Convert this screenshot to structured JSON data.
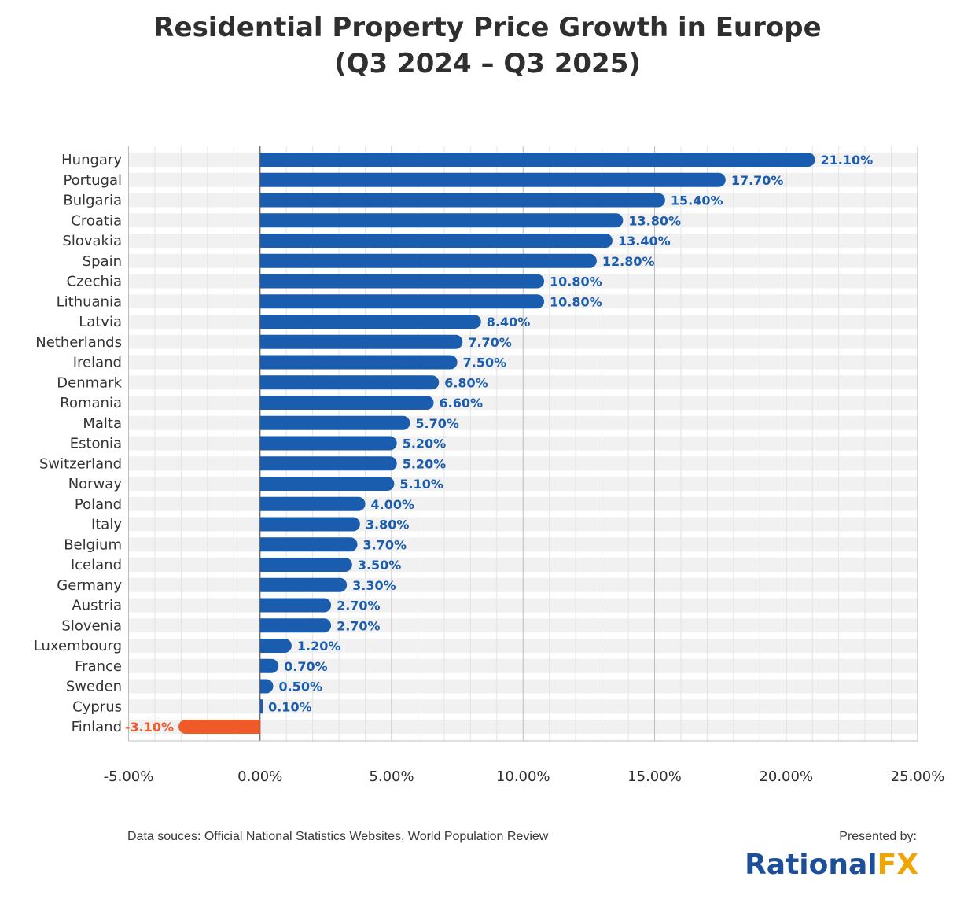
{
  "title_line1": "Residential Property Price Growth in Europe",
  "title_line2": "(Q3 2024 – Q3 2025)",
  "footer": {
    "source": "Data souces: Official National Statistics Websites, World Population Review",
    "presented_by": "Presented by:",
    "brand_part1": "Rational",
    "brand_part2": "FX"
  },
  "colors": {
    "positive": "#1a5cad",
    "negative": "#f05a28",
    "stripe": "#f1f1f1"
  },
  "chart_data": {
    "type": "bar",
    "orientation": "horizontal",
    "categories": [
      "Hungary",
      "Portugal",
      "Bulgaria",
      "Croatia",
      "Slovakia",
      "Spain",
      "Czechia",
      "Lithuania",
      "Latvia",
      "Netherlands",
      "Ireland",
      "Denmark",
      "Romania",
      "Malta",
      "Estonia",
      "Switzerland",
      "Norway",
      "Poland",
      "Italy",
      "Belgium",
      "Iceland",
      "Germany",
      "Austria",
      "Slovenia",
      "Luxembourg",
      "France",
      "Sweden",
      "Cyprus",
      "Finland"
    ],
    "values": [
      21.1,
      17.7,
      15.4,
      13.8,
      13.4,
      12.8,
      10.8,
      10.8,
      8.4,
      7.7,
      7.5,
      6.8,
      6.6,
      5.7,
      5.2,
      5.2,
      5.1,
      4.0,
      3.8,
      3.7,
      3.5,
      3.3,
      2.7,
      2.7,
      1.2,
      0.7,
      0.5,
      0.1,
      -3.1
    ],
    "data_labels": [
      "21.10%",
      "17.70%",
      "15.40%",
      "13.80%",
      "13.40%",
      "12.80%",
      "10.80%",
      "10.80%",
      "8.40%",
      "7.70%",
      "7.50%",
      "6.80%",
      "6.60%",
      "5.70%",
      "5.20%",
      "5.20%",
      "5.10%",
      "4.00%",
      "3.80%",
      "3.70%",
      "3.50%",
      "3.30%",
      "2.70%",
      "2.70%",
      "1.20%",
      "0.70%",
      "0.50%",
      "0.10%",
      "-3.10%"
    ],
    "xlim": [
      -5,
      25
    ],
    "x_ticks": [
      -5,
      0,
      5,
      10,
      15,
      20,
      25
    ],
    "x_tick_labels": [
      "-5.00%",
      "0.00%",
      "5.00%",
      "10.00%",
      "15.00%",
      "20.00%",
      "25.00%"
    ],
    "grid": true,
    "title": "Residential Property Price Growth in Europe (Q3 2024 – Q3 2025)"
  }
}
